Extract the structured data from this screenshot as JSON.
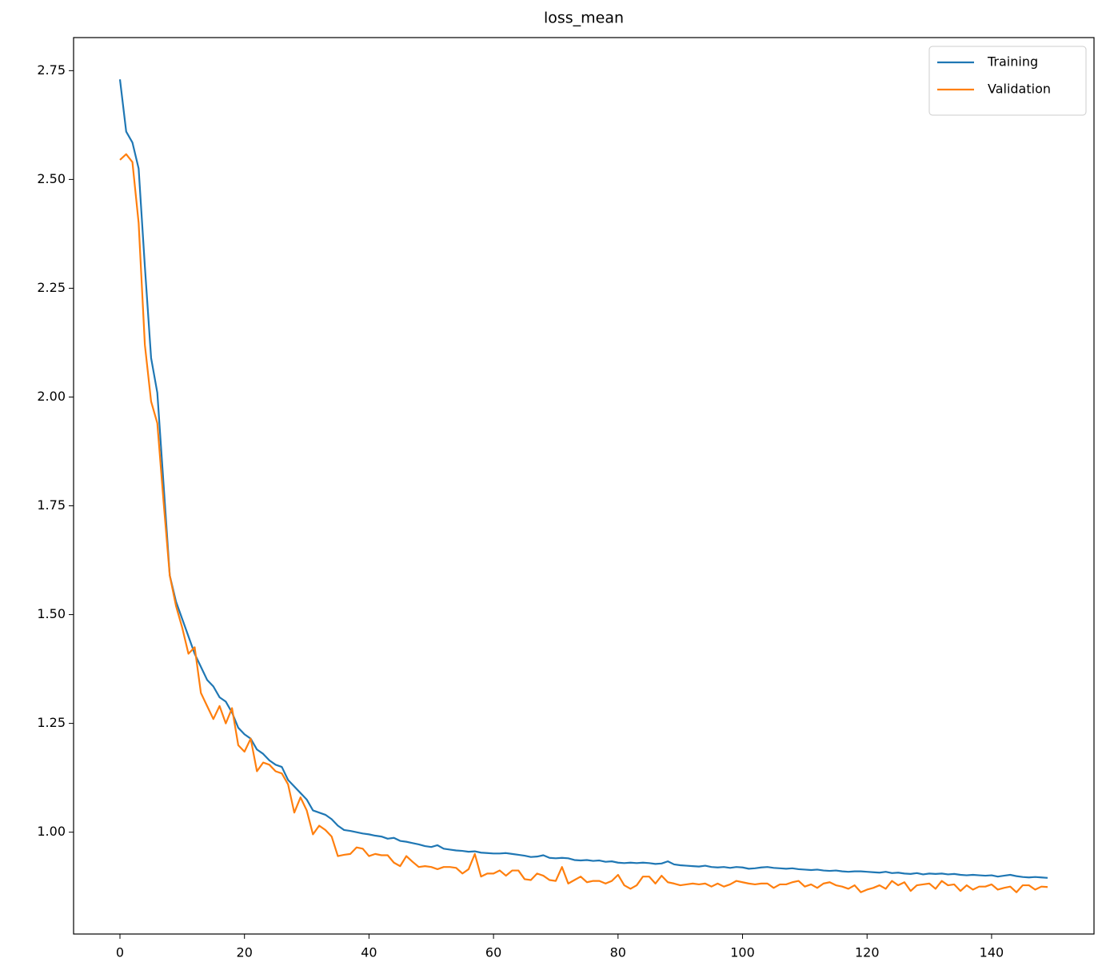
{
  "chart_data": {
    "type": "line",
    "title": "loss_mean",
    "x": [
      0,
      1,
      2,
      3,
      4,
      5,
      6,
      7,
      8,
      9,
      10,
      11,
      12,
      13,
      14,
      15,
      16,
      17,
      18,
      19,
      20,
      21,
      22,
      23,
      24,
      25,
      26,
      27,
      28,
      29,
      30,
      31,
      32,
      33,
      34,
      35,
      36,
      37,
      38,
      39,
      40,
      41,
      42,
      43,
      44,
      45,
      46,
      47,
      48,
      49,
      50,
      51,
      52,
      53,
      54,
      55,
      56,
      57,
      58,
      59,
      60,
      61,
      62,
      63,
      64,
      65,
      66,
      67,
      68,
      69,
      70,
      71,
      72,
      73,
      74,
      75,
      76,
      77,
      78,
      79,
      80,
      81,
      82,
      83,
      84,
      85,
      86,
      87,
      88,
      89,
      90,
      91,
      92,
      93,
      94,
      95,
      96,
      97,
      98,
      99,
      100,
      101,
      102,
      103,
      104,
      105,
      106,
      107,
      108,
      109,
      110,
      111,
      112,
      113,
      114,
      115,
      116,
      117,
      118,
      119,
      120,
      121,
      122,
      123,
      124,
      125,
      126,
      127,
      128,
      129,
      130,
      131,
      132,
      133,
      134,
      135,
      136,
      137,
      138,
      139,
      140,
      141,
      142,
      143,
      144,
      145,
      146,
      147,
      148,
      149
    ],
    "series": [
      {
        "name": "Training",
        "color": "#1f77b4",
        "values": [
          2.73,
          2.61,
          2.585,
          2.525,
          2.3,
          2.09,
          2.01,
          1.8,
          1.59,
          1.53,
          1.49,
          1.45,
          1.41,
          1.38,
          1.35,
          1.335,
          1.31,
          1.3,
          1.275,
          1.24,
          1.225,
          1.215,
          1.19,
          1.18,
          1.165,
          1.155,
          1.15,
          1.12,
          1.105,
          1.09,
          1.075,
          1.05,
          1.045,
          1.04,
          1.03,
          1.015,
          1.005,
          1.003,
          1.0,
          0.997,
          0.995,
          0.992,
          0.99,
          0.985,
          0.987,
          0.98,
          0.978,
          0.975,
          0.972,
          0.968,
          0.966,
          0.97,
          0.962,
          0.96,
          0.958,
          0.957,
          0.955,
          0.956,
          0.953,
          0.952,
          0.951,
          0.951,
          0.952,
          0.95,
          0.948,
          0.946,
          0.943,
          0.944,
          0.947,
          0.941,
          0.94,
          0.941,
          0.94,
          0.936,
          0.935,
          0.936,
          0.934,
          0.935,
          0.932,
          0.933,
          0.93,
          0.929,
          0.93,
          0.929,
          0.93,
          0.929,
          0.927,
          0.928,
          0.933,
          0.926,
          0.924,
          0.923,
          0.922,
          0.921,
          0.923,
          0.92,
          0.919,
          0.92,
          0.918,
          0.92,
          0.919,
          0.916,
          0.917,
          0.919,
          0.92,
          0.918,
          0.917,
          0.916,
          0.917,
          0.915,
          0.914,
          0.913,
          0.914,
          0.912,
          0.911,
          0.912,
          0.91,
          0.909,
          0.91,
          0.91,
          0.909,
          0.908,
          0.907,
          0.909,
          0.906,
          0.907,
          0.905,
          0.904,
          0.906,
          0.903,
          0.905,
          0.904,
          0.905,
          0.903,
          0.904,
          0.902,
          0.901,
          0.902,
          0.901,
          0.9,
          0.901,
          0.898,
          0.9,
          0.902,
          0.899,
          0.897,
          0.896,
          0.897,
          0.896,
          0.895
        ]
      },
      {
        "name": "Validation",
        "color": "#ff7f0e",
        "values": [
          2.545,
          2.558,
          2.54,
          2.4,
          2.12,
          1.99,
          1.94,
          1.76,
          1.59,
          1.52,
          1.47,
          1.41,
          1.425,
          1.32,
          1.29,
          1.26,
          1.29,
          1.25,
          1.285,
          1.2,
          1.185,
          1.215,
          1.14,
          1.16,
          1.155,
          1.14,
          1.135,
          1.11,
          1.045,
          1.08,
          1.05,
          0.995,
          1.015,
          1.005,
          0.99,
          0.945,
          0.948,
          0.95,
          0.965,
          0.962,
          0.945,
          0.95,
          0.947,
          0.947,
          0.93,
          0.922,
          0.945,
          0.932,
          0.92,
          0.922,
          0.92,
          0.915,
          0.92,
          0.92,
          0.918,
          0.905,
          0.915,
          0.95,
          0.898,
          0.905,
          0.905,
          0.912,
          0.9,
          0.912,
          0.912,
          0.892,
          0.89,
          0.905,
          0.9,
          0.89,
          0.888,
          0.92,
          0.882,
          0.89,
          0.898,
          0.885,
          0.888,
          0.888,
          0.882,
          0.888,
          0.902,
          0.878,
          0.87,
          0.878,
          0.898,
          0.898,
          0.882,
          0.9,
          0.885,
          0.882,
          0.878,
          0.88,
          0.882,
          0.88,
          0.882,
          0.875,
          0.882,
          0.875,
          0.88,
          0.888,
          0.885,
          0.882,
          0.88,
          0.882,
          0.882,
          0.872,
          0.88,
          0.88,
          0.885,
          0.888,
          0.875,
          0.88,
          0.872,
          0.882,
          0.885,
          0.878,
          0.875,
          0.87,
          0.878,
          0.862,
          0.868,
          0.872,
          0.878,
          0.87,
          0.888,
          0.878,
          0.885,
          0.865,
          0.878,
          0.88,
          0.882,
          0.87,
          0.888,
          0.878,
          0.88,
          0.865,
          0.878,
          0.868,
          0.875,
          0.875,
          0.88,
          0.868,
          0.872,
          0.875,
          0.862,
          0.878,
          0.878,
          0.868,
          0.875,
          0.874
        ]
      }
    ],
    "xlim": [
      -7.45,
      156.45
    ],
    "ylim": [
      0.766,
      2.826
    ],
    "xticks": [
      0,
      20,
      40,
      60,
      80,
      100,
      120,
      140
    ],
    "yticks": [
      {
        "value": 1,
        "label": "1.00"
      },
      1.25,
      {
        "value": 1.5,
        "label": "1.50"
      },
      1.75,
      {
        "value": 2,
        "label": "2.00"
      },
      2.25,
      {
        "value": 2.5,
        "label": "2.50"
      },
      2.75
    ],
    "legend": "upper right",
    "grid": false
  }
}
